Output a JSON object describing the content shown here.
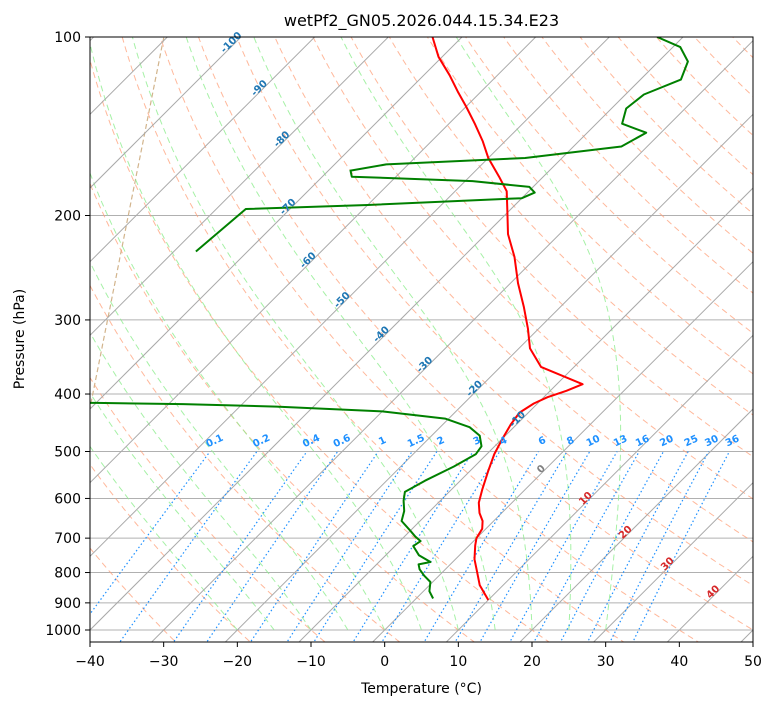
{
  "chart_data": {
    "type": "line",
    "title": "wetPf2_GN05.2026.044.15.34.E23",
    "xlabel": "Temperature (°C)",
    "ylabel": "Pressure (hPa)",
    "xlim": [
      -40,
      50
    ],
    "ylim": [
      1050,
      100
    ],
    "yscale": "log",
    "skew": true,
    "grid": true,
    "x_ticks": [
      -40,
      -30,
      -20,
      -10,
      0,
      10,
      20,
      30,
      40,
      50
    ],
    "y_ticks": [
      100,
      200,
      300,
      400,
      500,
      600,
      700,
      800,
      900,
      1000
    ],
    "series": [
      {
        "name": "",
        "color": "#ff0000",
        "points": [
          {
            "t": 10.0,
            "p": 890
          },
          {
            "t": 6.8,
            "p": 840
          },
          {
            "t": 4.5,
            "p": 795
          },
          {
            "t": 2.6,
            "p": 760
          },
          {
            "t": 0.8,
            "p": 720
          },
          {
            "t": 0.0,
            "p": 700
          },
          {
            "t": -0.5,
            "p": 675
          },
          {
            "t": -1.5,
            "p": 655
          },
          {
            "t": -3.0,
            "p": 635
          },
          {
            "t": -4.5,
            "p": 610
          },
          {
            "t": -5.8,
            "p": 580
          },
          {
            "t": -7.5,
            "p": 540
          },
          {
            "t": -9.0,
            "p": 505
          },
          {
            "t": -10.0,
            "p": 475
          },
          {
            "t": -10.8,
            "p": 450
          },
          {
            "t": -11.2,
            "p": 430
          },
          {
            "t": -10.5,
            "p": 415
          },
          {
            "t": -9.5,
            "p": 405
          },
          {
            "t": -7.8,
            "p": 395
          },
          {
            "t": -6.5,
            "p": 385
          },
          {
            "t": -14.5,
            "p": 360
          },
          {
            "t": -18.5,
            "p": 335
          },
          {
            "t": -21.5,
            "p": 310
          },
          {
            "t": -25.0,
            "p": 285
          },
          {
            "t": -29.0,
            "p": 260
          },
          {
            "t": -33.0,
            "p": 235
          },
          {
            "t": -37.0,
            "p": 215
          },
          {
            "t": -40.5,
            "p": 195
          },
          {
            "t": -43.0,
            "p": 182
          },
          {
            "t": -46.0,
            "p": 172
          },
          {
            "t": -50.0,
            "p": 160
          },
          {
            "t": -53.0,
            "p": 150
          },
          {
            "t": -56.5,
            "p": 140
          },
          {
            "t": -60.0,
            "p": 131
          },
          {
            "t": -63.0,
            "p": 124
          },
          {
            "t": -66.5,
            "p": 116
          },
          {
            "t": -70.5,
            "p": 108
          },
          {
            "t": -74.0,
            "p": 100
          }
        ]
      },
      {
        "name": "",
        "color": "#008000",
        "points": [
          {
            "t": 2.3,
            "p": 885
          },
          {
            "t": 0.8,
            "p": 860
          },
          {
            "t": -0.3,
            "p": 830
          },
          {
            "t": -2.0,
            "p": 810
          },
          {
            "t": -3.5,
            "p": 790
          },
          {
            "t": -4.3,
            "p": 775
          },
          {
            "t": -3.0,
            "p": 768
          },
          {
            "t": -5.5,
            "p": 748
          },
          {
            "t": -7.5,
            "p": 722
          },
          {
            "t": -7.2,
            "p": 708
          },
          {
            "t": -8.5,
            "p": 696
          },
          {
            "t": -10.0,
            "p": 680
          },
          {
            "t": -12.5,
            "p": 655
          },
          {
            "t": -13.5,
            "p": 630
          },
          {
            "t": -15.0,
            "p": 605
          },
          {
            "t": -16.0,
            "p": 585
          },
          {
            "t": -14.8,
            "p": 560
          },
          {
            "t": -12.8,
            "p": 530
          },
          {
            "t": -11.5,
            "p": 505
          },
          {
            "t": -11.8,
            "p": 490
          },
          {
            "t": -13.5,
            "p": 470
          },
          {
            "t": -16.0,
            "p": 455
          },
          {
            "t": -20.5,
            "p": 440
          },
          {
            "t": -30.0,
            "p": 428
          },
          {
            "t": -45.0,
            "p": 420
          },
          {
            "t": -58.0,
            "p": 416
          },
          {
            "t": -70.0,
            "p": 414
          },
          {
            "t": -95.0,
            "p": 413
          }
        ]
      },
      {
        "name": "",
        "color": "#008000",
        "points": [
          {
            "t": -77.0,
            "p": 230
          },
          {
            "t": -76.0,
            "p": 195
          },
          {
            "t": -60.0,
            "p": 192
          },
          {
            "t": -40.0,
            "p": 187
          },
          {
            "t": -39.0,
            "p": 183
          },
          {
            "t": -40.5,
            "p": 179
          },
          {
            "t": -49.0,
            "p": 175
          },
          {
            "t": -66.0,
            "p": 172
          },
          {
            "t": -67.0,
            "p": 168
          },
          {
            "t": -63.0,
            "p": 164
          },
          {
            "t": -45.0,
            "p": 160
          },
          {
            "t": -33.5,
            "p": 153
          },
          {
            "t": -32.0,
            "p": 145
          },
          {
            "t": -36.5,
            "p": 140
          },
          {
            "t": -38.0,
            "p": 132
          },
          {
            "t": -37.5,
            "p": 125
          },
          {
            "t": -34.5,
            "p": 118
          },
          {
            "t": -36.0,
            "p": 110
          },
          {
            "t": -39.0,
            "p": 104
          },
          {
            "t": -43.5,
            "p": 100
          }
        ]
      }
    ],
    "isotherm_labels": [
      "-100",
      "-90",
      "-80",
      "-70",
      "-60",
      "-50",
      "-40",
      "-30",
      "-20",
      "-10"
    ],
    "isotherm_label_color": "#1f77b4",
    "mixing_ratio_labels": [
      "0.1",
      "0.2",
      "0.4",
      "0.6",
      "1",
      "1.5",
      "2",
      "3",
      "4",
      "6",
      "8",
      "10",
      "13",
      "16",
      "20",
      "25",
      "30",
      "36"
    ],
    "mixing_ratio_label_color": "#1e90ff",
    "mixing_ratio_values": [
      0.1,
      0.2,
      0.4,
      0.6,
      1,
      1.5,
      2,
      3,
      4,
      6,
      8,
      10,
      13,
      16,
      20,
      25,
      30,
      36
    ],
    "warm_isotherm_labels": [
      "0",
      "10",
      "20",
      "30",
      "40"
    ],
    "warm_isotherm_colors": [
      "#808080",
      "#d62728",
      "#d62728",
      "#d62728",
      "#d62728"
    ],
    "colors": {
      "grid": "#b0b0b0",
      "skewed_isotherm": "#a9a9a9",
      "dry_adiabat": "#ffa07a",
      "moist_adiabat": "#90ee90",
      "mixing_ratio": "#1e90ff",
      "outer_curve": "#d2b48c"
    }
  }
}
